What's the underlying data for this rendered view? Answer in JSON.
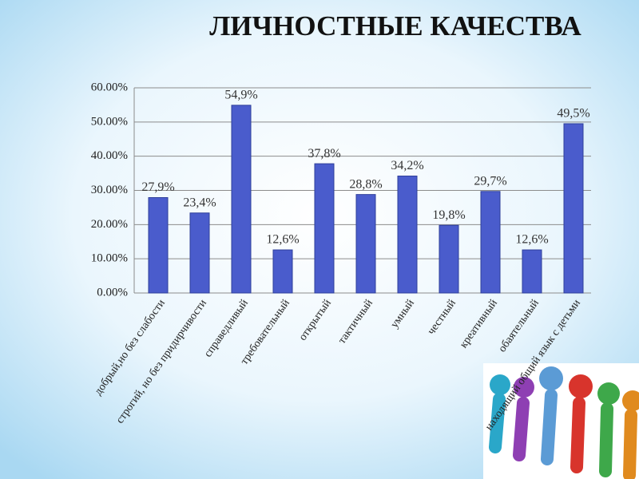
{
  "chart_data": {
    "type": "bar",
    "title": "ЛИЧНОСТНЫЕ КАЧЕСТВА",
    "categories": [
      "добрый,но без слабости",
      "строгий, но без придирчивости",
      "справедливый",
      "требовательный",
      "открытый",
      "тактичный",
      "умный",
      "честный",
      "креативный",
      "обаятельный",
      "находящий общий язык с детьми"
    ],
    "values": [
      27.9,
      23.4,
      54.9,
      12.6,
      37.8,
      28.8,
      34.2,
      19.8,
      29.7,
      12.6,
      49.5
    ],
    "value_labels": [
      "27,9%",
      "23,4%",
      "54,9%",
      "12,6%",
      "37,8%",
      "28,8%",
      "34,2%",
      "19,8%",
      "29,7%",
      "12,6%",
      "49,5%"
    ],
    "color": "#4a5ccc",
    "ylim": [
      0,
      60
    ],
    "yticks": [
      {
        "value": 0,
        "label": "0.00%"
      },
      {
        "value": 10,
        "label": "10.00%"
      },
      {
        "value": 20,
        "label": "20.00%"
      },
      {
        "value": 30,
        "label": "30.00%"
      },
      {
        "value": 40,
        "label": "40.00%"
      },
      {
        "value": 50,
        "label": "50.00%"
      },
      {
        "value": 60,
        "label": "60.00%"
      }
    ],
    "grid": true
  }
}
